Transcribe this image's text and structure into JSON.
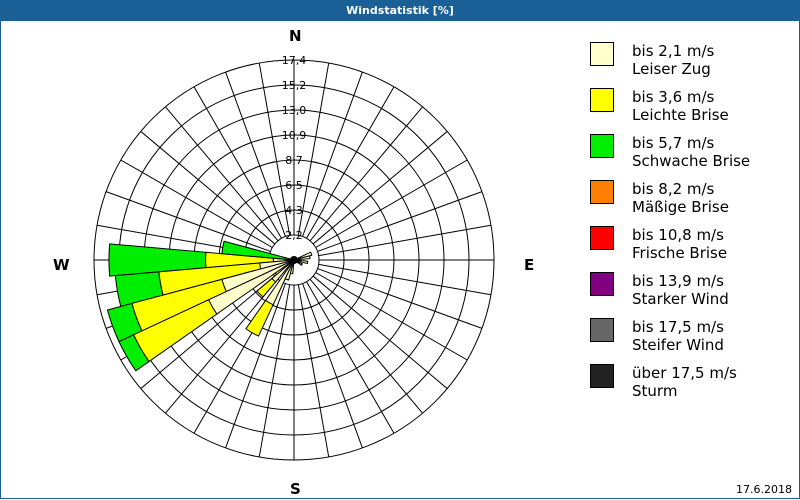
{
  "header": {
    "title": "Windstatistik [%]"
  },
  "compass": {
    "n": "N",
    "e": "E",
    "s": "S",
    "w": "W"
  },
  "footer": {
    "date": "17.6.2018"
  },
  "legend": [
    {
      "range": "bis 2,1 m/s",
      "name": "Leiser Zug",
      "color": "#ffffcc"
    },
    {
      "range": "bis 3,6 m/s",
      "name": "Leichte Brise",
      "color": "#ffff00"
    },
    {
      "range": "bis 5,7 m/s",
      "name": "Schwache Brise",
      "color": "#00ee00"
    },
    {
      "range": "bis 8,2 m/s",
      "name": "Mäßige Brise",
      "color": "#ff8000"
    },
    {
      "range": "bis 10,8 m/s",
      "name": "Frische Brise",
      "color": "#ff0000"
    },
    {
      "range": "bis 13,9 m/s",
      "name": "Starker Wind",
      "color": "#800080"
    },
    {
      "range": "bis 17,5 m/s",
      "name": "Steifer Wind",
      "color": "#666666"
    },
    {
      "range": "über 17,5 m/s",
      "name": "Sturm",
      "color": "#222222"
    }
  ],
  "chart_data": {
    "type": "windrose",
    "title": "Windstatistik [%]",
    "radial_ticks": [
      "2,2",
      "4,3",
      "6,5",
      "8,7",
      "10,9",
      "13,0",
      "15,2",
      "17,4"
    ],
    "rmax": 17.4,
    "sector_width_deg": 10,
    "series_order": [
      "bis 2,1 m/s",
      "bis 3,6 m/s",
      "bis 5,7 m/s"
    ],
    "sectors": [
      {
        "dir": 270,
        "cumulative": [
          1.8,
          7.7,
          16.1
        ]
      },
      {
        "dir": 260,
        "cumulative": [
          3.0,
          11.8,
          15.6
        ]
      },
      {
        "dir": 250,
        "cumulative": [
          6.5,
          14.6,
          16.8
        ]
      },
      {
        "dir": 240,
        "cumulative": [
          8.2,
          15.4,
          16.8
        ]
      },
      {
        "dir": 280,
        "cumulative": [
          0.5,
          0.8,
          6.3
        ]
      },
      {
        "dir": 230,
        "cumulative": [
          2.0,
          2.2,
          2.2
        ]
      },
      {
        "dir": 225,
        "cumulative": [
          2.5,
          4.2,
          4.2
        ]
      },
      {
        "dir": 210,
        "cumulative": [
          4.3,
          7.3,
          7.3
        ]
      },
      {
        "dir": 200,
        "cumulative": [
          1.8,
          1.8,
          1.8
        ]
      },
      {
        "dir": 190,
        "cumulative": [
          1.2,
          1.2,
          1.2
        ]
      },
      {
        "dir": 70,
        "cumulative": [
          1.6,
          1.6,
          1.6
        ]
      },
      {
        "dir": 80,
        "cumulative": [
          1.4,
          1.4,
          1.4
        ]
      },
      {
        "dir": 100,
        "cumulative": [
          1.2,
          1.2,
          1.2
        ]
      },
      {
        "dir": 120,
        "cumulative": [
          0.8,
          0.8,
          0.8
        ]
      }
    ]
  }
}
